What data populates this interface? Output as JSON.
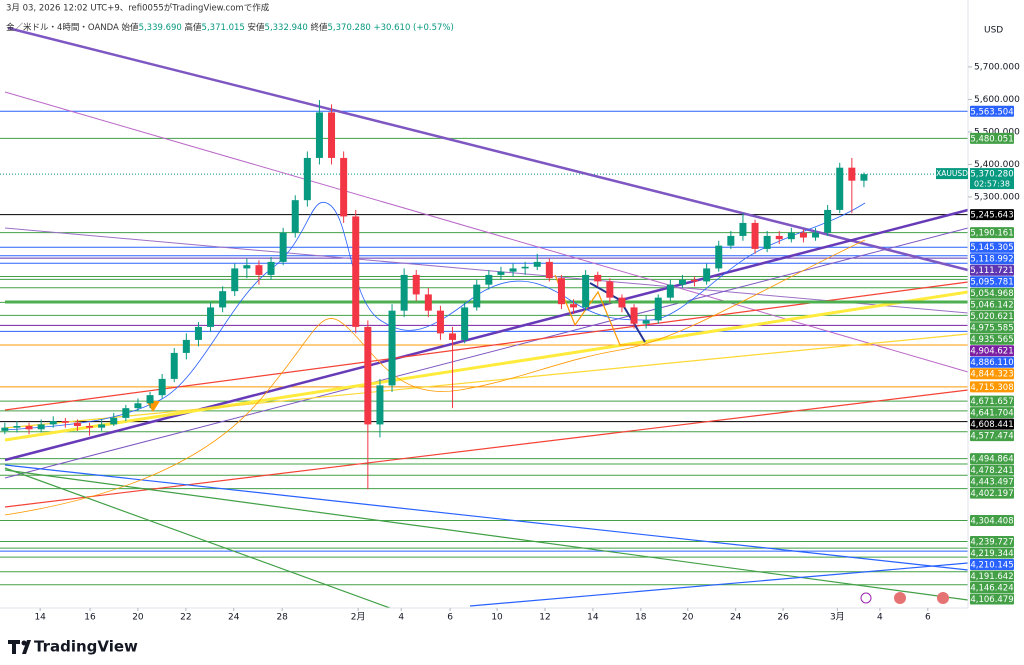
{
  "header": {
    "caption": "3月 03, 2026 12:02 UTC+9、refi0055がTradingView.comで作成",
    "symbol": "金／米ドル・4時間・OANDA",
    "open_label": "始値",
    "open": "5,339.690",
    "high_label": "高値",
    "high": "5,371.015",
    "low_label": "安値",
    "low": "5,332.940",
    "close_label": "終値",
    "close": "5,370.280",
    "change": "+30.610 (+0.57%)"
  },
  "chart_data": {
    "type": "candlestick",
    "currency": "USD",
    "x": [
      1,
      3.5,
      6,
      8.5,
      11,
      13.5,
      16,
      18.5,
      21,
      23.5,
      26,
      28.5,
      31,
      33.5,
      36,
      38.5,
      41,
      43.5,
      46,
      48.5,
      51,
      53.5,
      56,
      58.5,
      61,
      63.5,
      66,
      68.5,
      71,
      73.5,
      76,
      78.5,
      81,
      83.5,
      86,
      88.5,
      91,
      93.5,
      96,
      98.5,
      101,
      103.5,
      106,
      108.5,
      111,
      113.5,
      116,
      118.5,
      121,
      123.5,
      126,
      128.5,
      131,
      133.5,
      136,
      138.5,
      141,
      143.5,
      146,
      148.5,
      151,
      153.5,
      156,
      158.5,
      161,
      163.5,
      166,
      168.5,
      171,
      173.5,
      176,
      178.5
    ],
    "open": [
      4580,
      4590,
      4595,
      4585,
      4600,
      4610,
      4605,
      4595,
      4590,
      4600,
      4620,
      4650,
      4665,
      4690,
      4740,
      4820,
      4860,
      4900,
      4960,
      5010,
      5080,
      5090,
      5060,
      5100,
      5190,
      5290,
      5420,
      5560,
      5420,
      5240,
      4900,
      4600,
      4720,
      4950,
      5060,
      5000,
      4950,
      4880,
      4860,
      4960,
      5030,
      5060,
      5070,
      5080,
      5085,
      5100,
      5050,
      4970,
      4960,
      5060,
      5040,
      4990,
      4960,
      4910,
      4920,
      4990,
      5030,
      5045,
      5040,
      5080,
      5150,
      5180,
      5220,
      5140,
      5180,
      5170,
      5190,
      5175,
      5190,
      5260,
      5390,
      5350
    ],
    "high": [
      4605,
      4610,
      4605,
      4615,
      4625,
      4620,
      4615,
      4605,
      4615,
      4635,
      4660,
      4680,
      4700,
      4755,
      4835,
      4880,
      4915,
      4975,
      5025,
      5095,
      5110,
      5105,
      5115,
      5205,
      5305,
      5440,
      5598,
      5585,
      5440,
      5260,
      4920,
      4740,
      4970,
      5080,
      5075,
      5020,
      4965,
      4900,
      4975,
      5045,
      5075,
      5085,
      5095,
      5100,
      5125,
      5110,
      5060,
      4985,
      5075,
      5070,
      5050,
      5000,
      4970,
      4935,
      5000,
      5045,
      5060,
      5055,
      5095,
      5165,
      5195,
      5250,
      5230,
      5195,
      5195,
      5205,
      5200,
      5205,
      5275,
      5405,
      5420,
      5375
    ],
    "low": [
      4570,
      4575,
      4570,
      4575,
      4590,
      4590,
      4580,
      4565,
      4580,
      4595,
      4610,
      4640,
      4650,
      4680,
      4730,
      4800,
      4840,
      4885,
      4945,
      4995,
      5050,
      5030,
      5045,
      5090,
      5175,
      5270,
      5400,
      5400,
      5220,
      4880,
      4400,
      4560,
      4700,
      4930,
      4980,
      4930,
      4860,
      4650,
      4850,
      4950,
      5015,
      5045,
      5055,
      5060,
      5075,
      5040,
      4955,
      4940,
      4950,
      5025,
      4975,
      4945,
      4895,
      4895,
      4910,
      4980,
      5020,
      5025,
      5030,
      5070,
      5140,
      5165,
      5125,
      5130,
      5155,
      5160,
      5160,
      5165,
      5180,
      5250,
      5250,
      5330
    ],
    "close": [
      4590,
      4595,
      4585,
      4600,
      4610,
      4605,
      4595,
      4590,
      4600,
      4620,
      4650,
      4665,
      4690,
      4740,
      4820,
      4860,
      4900,
      4960,
      5010,
      5080,
      5090,
      5060,
      5100,
      5190,
      5290,
      5420,
      5560,
      5420,
      5240,
      4900,
      4600,
      4720,
      4950,
      5060,
      5000,
      4950,
      4880,
      4860,
      4960,
      5030,
      5060,
      5070,
      5080,
      5085,
      5100,
      5050,
      4970,
      4960,
      5060,
      5040,
      4990,
      4960,
      4910,
      4920,
      4990,
      5030,
      5045,
      5040,
      5080,
      5150,
      5180,
      5220,
      5140,
      5180,
      5170,
      5190,
      5175,
      5190,
      5260,
      5390,
      5350,
      5370
    ],
    "up_color": "#089981",
    "down_color": "#f23645",
    "xlim": [
      0,
      200
    ],
    "xticks": [
      {
        "value": 8.3,
        "label": "14"
      },
      {
        "value": 18.6,
        "label": "16"
      },
      {
        "value": 28.5,
        "label": "20"
      },
      {
        "value": 38.4,
        "label": "22"
      },
      {
        "value": 48.3,
        "label": "24"
      },
      {
        "value": 58.3,
        "label": "28"
      },
      {
        "value": 74,
        "label": "2月"
      },
      {
        "value": 82.9,
        "label": "4"
      },
      {
        "value": 93,
        "label": "6"
      },
      {
        "value": 102.7,
        "label": "10"
      },
      {
        "value": 112.6,
        "label": "12"
      },
      {
        "value": 122.5,
        "label": "14"
      },
      {
        "value": 132.4,
        "label": "18"
      },
      {
        "value": 142.1,
        "label": "20"
      },
      {
        "value": 152,
        "label": "24"
      },
      {
        "value": 161.8,
        "label": "26"
      },
      {
        "value": 173,
        "label": "3月"
      },
      {
        "value": 181.8,
        "label": "4"
      },
      {
        "value": 191.7,
        "label": "6"
      }
    ],
    "ylim": [
      4035,
      5906
    ],
    "yticks": [
      {
        "value": 5700,
        "label": "5,700.000"
      },
      {
        "value": 5600,
        "label": "5,600.000"
      },
      {
        "value": 5500,
        "label": "5,500.000"
      },
      {
        "value": 5400,
        "label": "5,400.000"
      },
      {
        "value": 5300,
        "label": "5,300.000"
      }
    ],
    "levels": [
      {
        "value": 5563.504,
        "label": "5,563.504",
        "color": "#2962ff"
      },
      {
        "value": 5480.051,
        "label": "5,480.051",
        "color": "#43a047"
      },
      {
        "value": 5245.643,
        "label": "5,245.643",
        "color": "#000000"
      },
      {
        "value": 5190.161,
        "label": "5,190.161",
        "color": "#43a047"
      },
      {
        "value": 5145.305,
        "label": "5,145.305",
        "color": "#2962ff"
      },
      {
        "value": 5118.992,
        "label": "5,118.992",
        "color": "#2962ff"
      },
      {
        "value": 5111.721,
        "label": "5,111.721",
        "color": "#5e35b1"
      },
      {
        "value": 5095.781,
        "label": "5,095.781",
        "color": "#2962ff"
      },
      {
        "value": 5054.968,
        "label": "5,054.968",
        "color": "#43a047"
      },
      {
        "value": 5046.142,
        "label": "5,046.142",
        "color": "#43a047"
      },
      {
        "value": 5020.621,
        "label": "5,020.621",
        "color": "#43a047"
      },
      {
        "value": 4975.585,
        "label": "4,975.585",
        "color": "#43a047"
      },
      {
        "value": 4935.565,
        "label": "4,935.565",
        "color": "#43a047"
      },
      {
        "value": 4904.621,
        "label": "4,904.621",
        "color": "#7b1fa2"
      },
      {
        "value": 4886.11,
        "label": "4,886.110",
        "color": "#2962ff"
      },
      {
        "value": 4844.323,
        "label": "4,844.323",
        "color": "#ff9800"
      },
      {
        "value": 4715.308,
        "label": "4,715.308",
        "color": "#ff9800"
      },
      {
        "value": 4671.657,
        "label": "4,671.657",
        "color": "#43a047"
      },
      {
        "value": 4641.704,
        "label": "4,641.704",
        "color": "#43a047"
      },
      {
        "value": 4608.441,
        "label": "4,608.441",
        "color": "#000000"
      },
      {
        "value": 4577.474,
        "label": "4,577.474",
        "color": "#43a047"
      },
      {
        "value": 4494.864,
        "label": "4,494.864",
        "color": "#43a047"
      },
      {
        "value": 4478.241,
        "label": "4,478.241",
        "color": "#43a047"
      },
      {
        "value": 4443.497,
        "label": "4,443.497",
        "color": "#43a047"
      },
      {
        "value": 4402.197,
        "label": "4,402.197",
        "color": "#43a047"
      },
      {
        "value": 4304.408,
        "label": "4,304.408",
        "color": "#43a047"
      },
      {
        "value": 4239.727,
        "label": "4,239.727",
        "color": "#43a047"
      },
      {
        "value": 4219.344,
        "label": "4,219.344",
        "color": "#43a047"
      },
      {
        "value": 4210.145,
        "label": "4,210.145",
        "color": "#2962ff"
      },
      {
        "value": 4191.642,
        "label": "4,191.642",
        "color": "#43a047"
      },
      {
        "value": 4146.424,
        "label": "4,146.424",
        "color": "#43a047"
      },
      {
        "value": 4106.479,
        "label": "4,106.479",
        "color": "#43a047"
      }
    ],
    "last_price": {
      "symbol": "XAUUSD",
      "value": 5370.28,
      "label": "5,370.280",
      "countdown": "02:57:38",
      "color": "#089981"
    }
  },
  "footer": {
    "brand": "TradingView"
  }
}
